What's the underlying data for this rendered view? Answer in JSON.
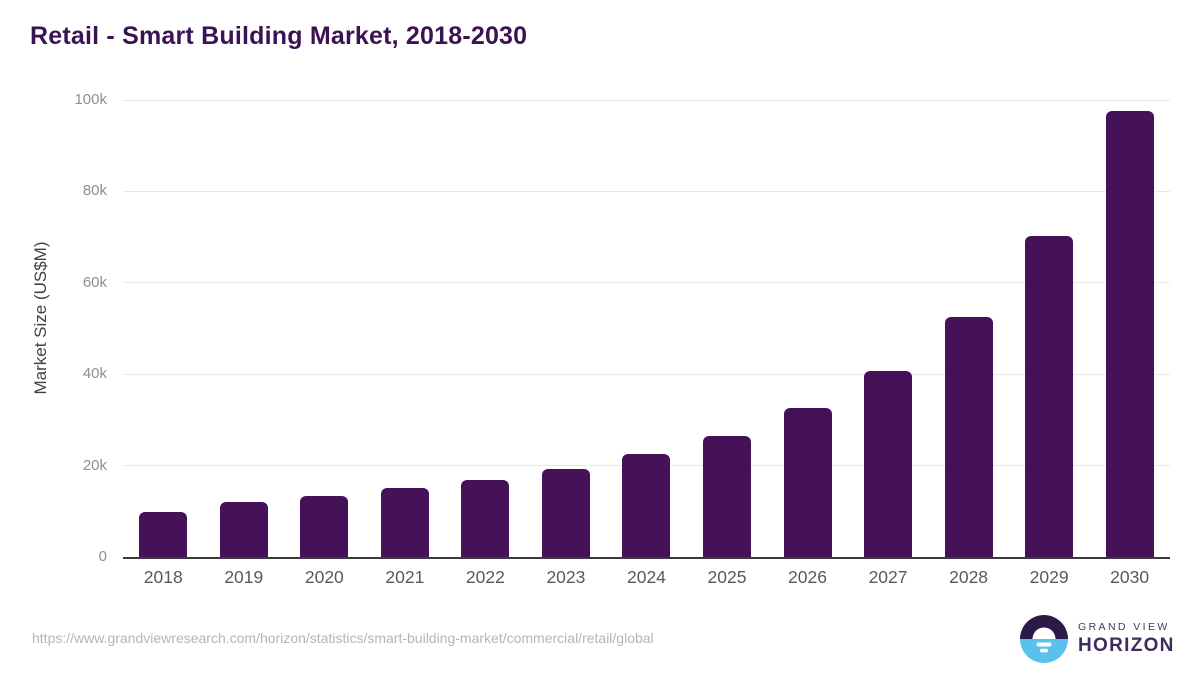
{
  "chart_data": {
    "type": "bar",
    "title": "Retail - Smart Building Market, 2018-2030",
    "ylabel": "Market Size (US$M)",
    "xlabel": "",
    "categories": [
      "2018",
      "2019",
      "2020",
      "2021",
      "2022",
      "2023",
      "2024",
      "2025",
      "2026",
      "2027",
      "2028",
      "2029",
      "2030"
    ],
    "values": [
      9800,
      12000,
      13400,
      15000,
      16800,
      19200,
      22500,
      26500,
      32500,
      40600,
      52500,
      70200,
      97600
    ],
    "ylim": [
      0,
      100000
    ],
    "yticks": [
      {
        "value": 0,
        "label": "0"
      },
      {
        "value": 20000,
        "label": "20k"
      },
      {
        "value": 40000,
        "label": "40k"
      },
      {
        "value": 60000,
        "label": "60k"
      },
      {
        "value": 80000,
        "label": "80k"
      },
      {
        "value": 100000,
        "label": "100k"
      }
    ],
    "grid": true,
    "legend": false,
    "bar_color": "#451259",
    "title_color": "#3b1353",
    "axis_line_color": "#3a3a3a",
    "gridline_color": "#e9e9e9",
    "tick_label_color": "#8e8e8e",
    "x_label_color": "#595959"
  },
  "footer": {
    "url": "https://www.grandviewresearch.com/horizon/statistics/smart-building-market/commercial/retail/global",
    "logo": {
      "line1": "GRAND VIEW",
      "line2": "HORIZON",
      "icon": "horizon-sun-icon",
      "icon_top_color": "#2b1a45",
      "icon_bottom_color": "#5ac1ec"
    }
  }
}
